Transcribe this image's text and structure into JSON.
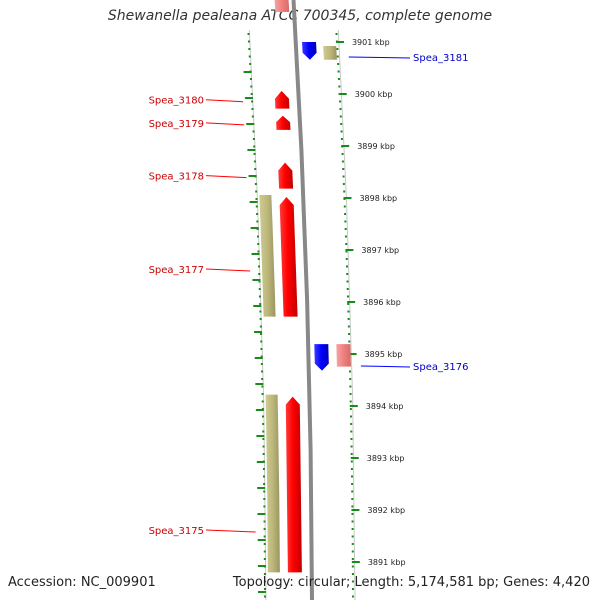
{
  "title": "Shewanella pealeana ATCC 700345, complete genome",
  "footer": {
    "accession": "Accession: NC_009901",
    "summary": "Topology: circular; Length: 5,174,581 bp; Genes: 4,420"
  },
  "colors": {
    "forward_cds": "#ff0000",
    "reverse_cds": "#0000ff",
    "rna_or_pseudo": "#f08080",
    "orf_bar": "#bcb77a",
    "tick_green": "#1a8a1a",
    "backbone": "#888888"
  },
  "scale": {
    "unit": "kbp",
    "ticks": [
      {
        "kbp": 3901,
        "label": "3901 kbp"
      },
      {
        "kbp": 3900,
        "label": "3900 kbp"
      },
      {
        "kbp": 3899,
        "label": "3899 kbp"
      },
      {
        "kbp": 3898,
        "label": "3898 kbp"
      },
      {
        "kbp": 3897,
        "label": "3897 kbp"
      },
      {
        "kbp": 3896,
        "label": "3896 kbp"
      },
      {
        "kbp": 3895,
        "label": "3895 kbp"
      },
      {
        "kbp": 3894,
        "label": "3894 kbp"
      },
      {
        "kbp": 3893,
        "label": "3893 kbp"
      },
      {
        "kbp": 3892,
        "label": "3892 kbp"
      },
      {
        "kbp": 3891,
        "label": "3891 kbp"
      }
    ]
  },
  "genes": [
    {
      "label": "Spea_3181",
      "strand": "reverse",
      "start_kbp": 3900.66,
      "end_kbp": 3901.0
    },
    {
      "label": "Spea_3180",
      "strand": "forward",
      "start_kbp": 3899.72,
      "end_kbp": 3900.06
    },
    {
      "label": "Spea_3179",
      "strand": "forward",
      "start_kbp": 3899.31,
      "end_kbp": 3899.58
    },
    {
      "label": "Spea_3178",
      "strand": "forward",
      "start_kbp": 3898.18,
      "end_kbp": 3898.68
    },
    {
      "label": "Spea_3177",
      "strand": "forward",
      "start_kbp": 3895.72,
      "end_kbp": 3898.02
    },
    {
      "label": "Spea_3176",
      "strand": "reverse",
      "start_kbp": 3894.68,
      "end_kbp": 3895.19
    },
    {
      "label": "Spea_3175",
      "strand": "forward",
      "start_kbp": 3890.8,
      "end_kbp": 3894.18
    }
  ]
}
